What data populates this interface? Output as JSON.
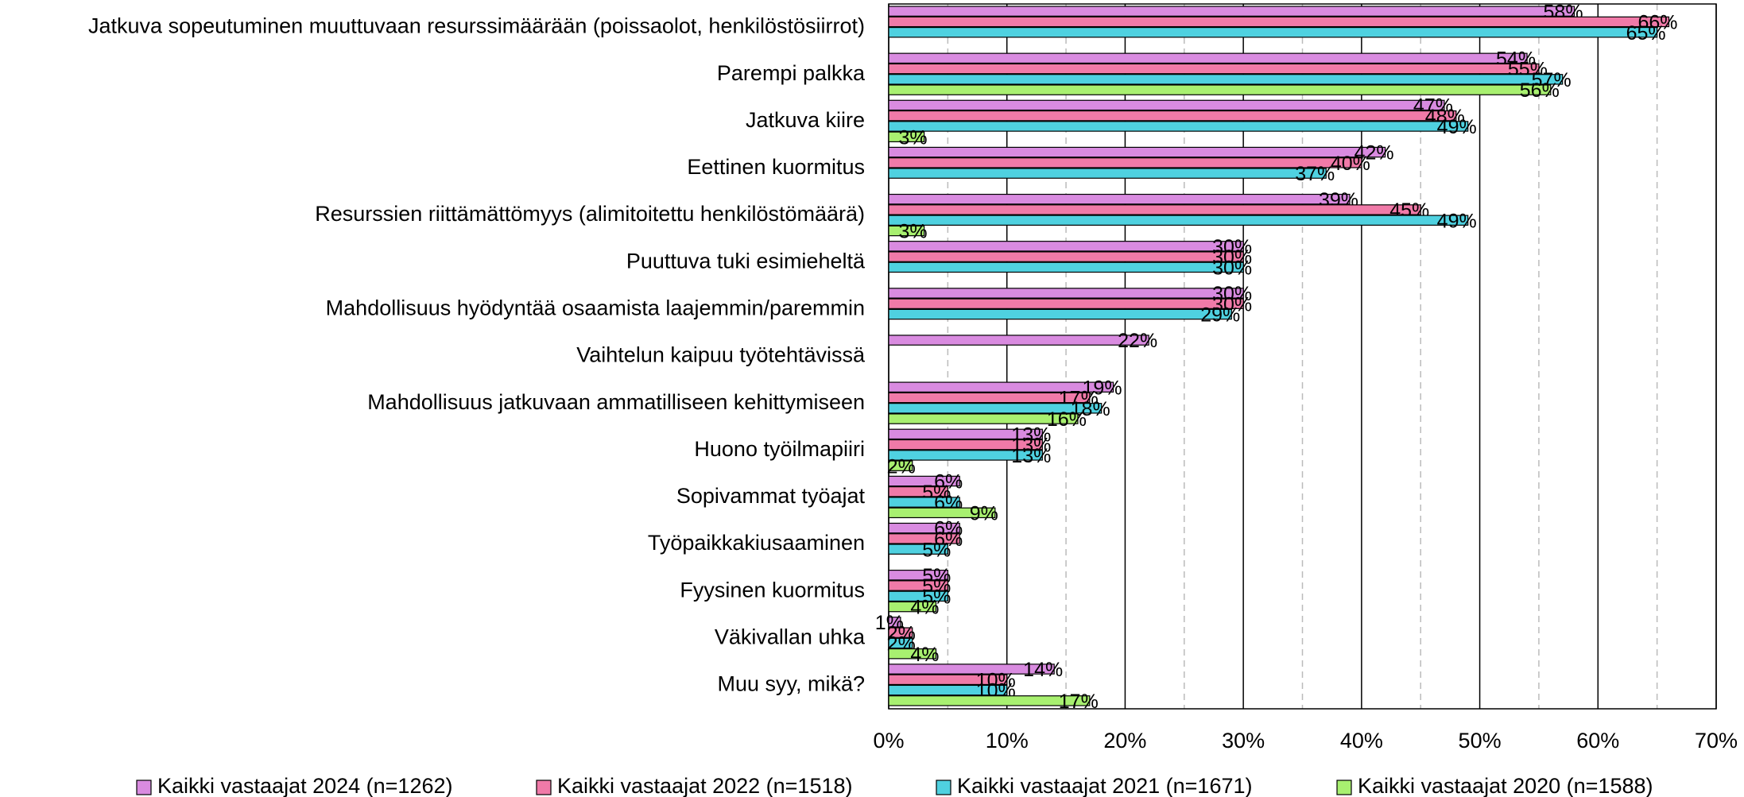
{
  "chart_data": {
    "type": "hbar",
    "categories": [
      "Jatkuva sopeutuminen muuttuvaan resurssimäärään (poissaolot, henkilöstösiirrot)",
      "Parempi palkka",
      "Jatkuva kiire",
      "Eettinen kuormitus",
      "Resurssien riittämättömyys (alimitoitettu henkilöstömäärä)",
      "Puuttuva tuki esimieheltä",
      "Mahdollisuus hyödyntää osaamista laajemmin/paremmin",
      "Vaihtelun kaipuu työtehtävissä",
      "Mahdollisuus jatkuvaan ammatilliseen kehittymiseen",
      "Huono työilmapiiri",
      "Sopivammat työajat",
      "Työpaikkakiusaaminen",
      "Fyysinen kuormitus",
      "Väkivallan uhka",
      "Muu syy, mikä?"
    ],
    "series": [
      {
        "name": "Kaikki vastaajat 2024 (n=1262)",
        "color": "#d98be0",
        "values": [
          58,
          54,
          47,
          42,
          39,
          30,
          30,
          22,
          19,
          13,
          6,
          6,
          5,
          1,
          14
        ],
        "value_labels": [
          "58%",
          "54%",
          "47%",
          "42%",
          "39%",
          "30%",
          "30%",
          "22%",
          "19%",
          "13%",
          "6%",
          "6%",
          "5%",
          "1%",
          "14%"
        ]
      },
      {
        "name": "Kaikki vastaajat 2022 (n=1518)",
        "color": "#f07aa8",
        "values": [
          66,
          55,
          48,
          40,
          45,
          30,
          30,
          null,
          17,
          13,
          5,
          6,
          5,
          2,
          10
        ],
        "value_labels": [
          "66%",
          "55%",
          "48%",
          "40%",
          "45%",
          "30%",
          "30%",
          null,
          "17%",
          "13%",
          "5%",
          "6%",
          "5%",
          "2%",
          "10%"
        ]
      },
      {
        "name": "Kaikki vastaajat 2021 (n=1671)",
        "color": "#4fd1e0",
        "values": [
          65,
          57,
          49,
          37,
          49,
          30,
          29,
          null,
          18,
          13,
          6,
          5,
          5,
          2,
          10
        ],
        "value_labels": [
          "65%",
          "57%",
          "49%",
          "37%",
          "49%",
          "30%",
          "29%",
          null,
          "18%",
          "13%",
          "6%",
          "5%",
          "5%",
          "2%",
          "10%"
        ]
      },
      {
        "name": "Kaikki vastaajat 2020 (n=1588)",
        "color": "#a8f070",
        "values": [
          null,
          56,
          3,
          null,
          3,
          null,
          null,
          null,
          16,
          2,
          9,
          null,
          4,
          4,
          17
        ],
        "value_labels": [
          null,
          "56%",
          "3%",
          null,
          "3%",
          null,
          null,
          null,
          "16%",
          "2%",
          "9%",
          null,
          "4%",
          "4%",
          "17%"
        ]
      }
    ],
    "xlim": [
      0,
      70
    ],
    "xticks": [
      {
        "value": 0,
        "label": "0%"
      },
      {
        "value": 10,
        "label": "10%"
      },
      {
        "value": 20,
        "label": "20%"
      },
      {
        "value": 30,
        "label": "30%"
      },
      {
        "value": 40,
        "label": "40%"
      },
      {
        "value": 50,
        "label": "50%"
      },
      {
        "value": 60,
        "label": "60%"
      },
      {
        "value": 70,
        "label": "70%"
      }
    ],
    "xminorticks": [
      5,
      15,
      25,
      35,
      45,
      55,
      65
    ],
    "grid": true,
    "legend": "bottom"
  }
}
